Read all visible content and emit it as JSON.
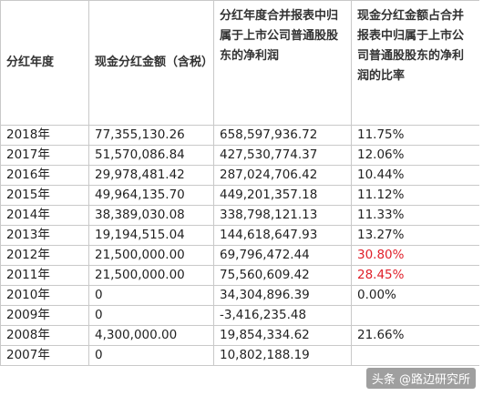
{
  "headers": [
    "分红年度",
    "现金分红金额（含税）",
    "分红年度合并报表中归属于上市公司普通股股东的净利润",
    "现金分红金额占合并报表中归属于上市公司普通股股东的净利润的比率"
  ],
  "rows": [
    {
      "year": "2018年",
      "cash": "77,355,130.26",
      "profit": "658,597,936.72",
      "ratio": "11.75%",
      "ratio_color": "normal"
    },
    {
      "year": "2017年",
      "cash": "51,570,086.84",
      "profit": "427,530,774.37",
      "ratio": "12.06%",
      "ratio_color": "normal"
    },
    {
      "year": "2016年",
      "cash": "29,978,481.42",
      "profit": "287,024,706.42",
      "ratio": "10.44%",
      "ratio_color": "normal"
    },
    {
      "year": "2015年",
      "cash": "49,964,135.70",
      "profit": "449,201,357.18",
      "ratio": "11.12%",
      "ratio_color": "normal"
    },
    {
      "year": "2014年",
      "cash": "38,389,030.08",
      "profit": "338,798,121.13",
      "ratio": "11.33%",
      "ratio_color": "normal"
    },
    {
      "year": "2013年",
      "cash": "19,194,515.04",
      "profit": "144,618,647.93",
      "ratio": "13.27%",
      "ratio_color": "normal"
    },
    {
      "year": "2012年",
      "cash": "21,500,000.00",
      "profit": "69,796,472.44",
      "ratio": "30.80%",
      "ratio_color": "red"
    },
    {
      "year": "2011年",
      "cash": "21,500,000.00",
      "profit": "75,560,609.42",
      "ratio": "28.45%",
      "ratio_color": "red"
    },
    {
      "year": "2010年",
      "cash": "0",
      "profit": "34,304,896.39",
      "ratio": "0.00%",
      "ratio_color": "normal"
    },
    {
      "year": "2009年",
      "cash": "0",
      "profit": "-3,416,235.48",
      "ratio": "",
      "ratio_color": "normal"
    },
    {
      "year": "2008年",
      "cash": "4,300,000.00",
      "profit": "19,854,334.62",
      "ratio": "21.66%",
      "ratio_color": "normal"
    },
    {
      "year": "2007年",
      "cash": "0",
      "profit": "10,802,188.19",
      "ratio": "",
      "ratio_color": "normal"
    }
  ],
  "watermark": "头条 @路边研究所"
}
